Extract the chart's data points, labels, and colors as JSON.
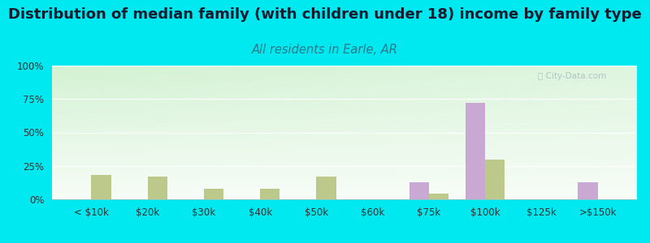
{
  "title": "Distribution of median family (with children under 18) income by family type",
  "subtitle": "All residents in Earle, AR",
  "categories": [
    "< $10k",
    "$20k",
    "$30k",
    "$40k",
    "$50k",
    "$60k",
    "$75k",
    "$100k",
    "$125k",
    ">$150k"
  ],
  "married_couple": [
    0,
    0,
    0,
    0,
    0,
    0,
    13,
    72,
    0,
    13
  ],
  "female_no_husband": [
    18,
    17,
    8,
    8,
    17,
    0,
    4,
    30,
    0,
    0
  ],
  "married_color": "#c9a8d4",
  "female_color": "#bdc98a",
  "bg_color_outer": "#00e8f0",
  "ylim": [
    0,
    100
  ],
  "yticks": [
    0,
    25,
    50,
    75,
    100
  ],
  "ytick_labels": [
    "0%",
    "25%",
    "50%",
    "75%",
    "100%"
  ],
  "bar_width": 0.35,
  "title_fontsize": 13,
  "subtitle_fontsize": 10.5,
  "tick_fontsize": 8.5,
  "legend_fontsize": 9.5
}
